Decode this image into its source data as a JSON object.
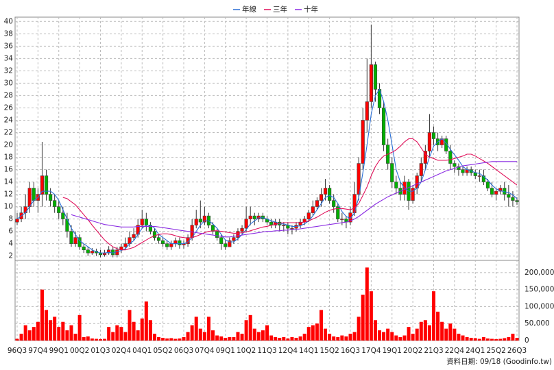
{
  "chart_data": {
    "type": "candlestick",
    "footnote": "資料日期: 09/18 (Goodinfo.tw)",
    "up_color": "#ff0000",
    "down_color": "#00b000",
    "grid": true,
    "legend": "top",
    "categories": [
      "96Q3",
      null,
      null,
      null,
      null,
      "97Q4",
      null,
      null,
      null,
      null,
      "99Q1",
      null,
      null,
      null,
      null,
      "00Q2",
      null,
      null,
      null,
      null,
      "01Q3",
      null,
      null,
      null,
      null,
      "02Q4",
      null,
      null,
      null,
      null,
      "04Q1",
      null,
      null,
      null,
      null,
      "05Q2",
      null,
      null,
      null,
      null,
      "06Q3",
      null,
      null,
      null,
      null,
      "07Q4",
      null,
      null,
      null,
      null,
      "09Q1",
      null,
      null,
      null,
      null,
      "10Q2",
      null,
      null,
      null,
      null,
      "11Q3",
      null,
      null,
      null,
      null,
      "12Q4",
      null,
      null,
      null,
      null,
      "14Q1",
      null,
      null,
      null,
      null,
      "15Q2",
      null,
      null,
      null,
      null,
      "16Q3",
      null,
      null,
      null,
      null,
      "17Q4",
      null,
      null,
      null,
      null,
      "19Q1",
      null,
      null,
      null,
      null,
      "20Q2",
      null,
      null,
      null,
      null,
      "21Q3",
      null,
      null,
      null,
      null,
      "22Q4",
      null,
      null,
      null,
      null,
      "24Q1",
      null,
      null,
      null,
      null,
      "25Q2",
      null,
      null,
      null,
      null,
      "26Q3"
    ],
    "open": [
      7.5,
      8,
      9,
      10,
      13,
      11,
      12,
      15,
      12,
      11,
      10,
      9,
      8,
      6,
      4,
      5,
      3.5,
      3,
      2.5,
      2.8,
      2.5,
      2.2,
      2.5,
      3,
      2.2,
      3,
      3.5,
      4,
      5,
      5.5,
      7,
      8,
      7,
      6,
      5,
      4.5,
      4,
      3.5,
      4,
      4.5,
      3.8,
      4,
      5,
      7,
      8,
      7.5,
      8.5,
      7,
      6,
      5,
      4,
      3.5,
      4.5,
      5,
      6,
      6.5,
      8,
      8.5,
      8,
      8.5,
      8,
      7.5,
      7,
      7.5,
      7,
      7,
      6.5,
      6.5,
      7,
      7.5,
      8,
      9,
      10,
      11,
      12,
      13,
      11,
      10,
      8,
      8,
      7.5,
      9,
      12,
      17,
      24,
      27,
      33,
      29,
      26,
      20,
      17,
      14,
      13,
      12,
      14,
      11,
      13,
      15,
      17,
      19,
      22,
      21,
      20,
      21,
      19,
      17,
      16.5,
      16,
      15.5,
      16,
      15.5,
      15,
      15,
      14,
      13,
      12,
      12.5,
      13,
      12,
      11.5,
      11
    ],
    "high": [
      9,
      10,
      12,
      14,
      14,
      13,
      20.5,
      16,
      13,
      12,
      11,
      10,
      9,
      7,
      6,
      5.5,
      4,
      3.5,
      3.3,
      3.2,
      3,
      3,
      3.6,
      3.5,
      3.5,
      4,
      5,
      6,
      6.5,
      8,
      9.5,
      9,
      7.5,
      6.5,
      5.5,
      5,
      4.5,
      4.5,
      5,
      5,
      4.5,
      5.5,
      8,
      9.5,
      11,
      10,
      9,
      7.5,
      6.5,
      5.5,
      4.5,
      5,
      5.5,
      6.5,
      7,
      10,
      10,
      9,
      9,
      9,
      8.5,
      8,
      8,
      8,
      7.5,
      7.5,
      7,
      7.5,
      8,
      8.5,
      9.5,
      11,
      11.5,
      13,
      14.5,
      13.5,
      12,
      10.5,
      9,
      8.5,
      10,
      14,
      18,
      26,
      34,
      39.5,
      33.5,
      30,
      27,
      21,
      18,
      15,
      14,
      15,
      14.5,
      13.5,
      15.5,
      18,
      20,
      25,
      23,
      22,
      21.5,
      21.5,
      20,
      17.5,
      17,
      16.5,
      16.5,
      16.5,
      16,
      16,
      16,
      14.5,
      14,
      13,
      13.5,
      14,
      13.5,
      12.5,
      11.5
    ],
    "low": [
      7,
      7.5,
      8,
      9,
      10,
      9,
      10,
      11,
      10,
      9,
      8,
      7,
      5,
      3.5,
      3.5,
      3,
      2.5,
      2,
      2.2,
      2,
      1.8,
      1.9,
      2.2,
      1.8,
      1.8,
      2.5,
      3,
      3.5,
      4.5,
      5,
      6.5,
      6,
      5.5,
      4.5,
      4,
      3.5,
      3,
      3,
      3.5,
      3.2,
      3.2,
      3.5,
      4.5,
      6.5,
      6.5,
      7,
      6.5,
      5.5,
      4.5,
      3,
      3,
      3.5,
      4,
      4.5,
      5.5,
      6,
      7,
      7,
      7.5,
      7.5,
      7,
      6.5,
      6.5,
      6,
      6,
      5.5,
      5.5,
      6,
      6.5,
      7,
      7.5,
      8.5,
      9.5,
      10,
      11,
      10.5,
      9,
      7.5,
      7,
      6.5,
      7,
      8.5,
      11,
      16,
      22,
      26,
      27,
      25,
      19,
      16,
      13,
      12,
      11,
      11,
      9.5,
      10.5,
      12,
      14,
      16,
      18,
      20,
      19,
      19.5,
      18.5,
      16,
      15.5,
      15,
      15,
      15,
      15,
      14.5,
      14,
      13.5,
      12.5,
      11.5,
      11,
      12,
      11,
      10,
      10,
      10.3
    ],
    "close": [
      8,
      9,
      10,
      13,
      11,
      12,
      15,
      12,
      11,
      10,
      9,
      8,
      6,
      4,
      5,
      3.5,
      3,
      2.5,
      2.8,
      2.5,
      2.2,
      2.5,
      3,
      2.2,
      3,
      3.5,
      4,
      5,
      5.5,
      7,
      8,
      7,
      6,
      5,
      4.5,
      4,
      3.5,
      4,
      4.5,
      3.8,
      4,
      5,
      7,
      8,
      7.5,
      8.5,
      7,
      6,
      5,
      4,
      3.5,
      4.5,
      5,
      6,
      6.5,
      8,
      8.5,
      8,
      8.5,
      8,
      7.5,
      7,
      7.5,
      7,
      7,
      6.5,
      6.5,
      7,
      7.5,
      8,
      9,
      10,
      11,
      12,
      13,
      11,
      10,
      8,
      8,
      7.5,
      9,
      12,
      17,
      24,
      27,
      33,
      29,
      26,
      20,
      17,
      14,
      13,
      12,
      14,
      11,
      13,
      15,
      17,
      19,
      22,
      21,
      20,
      21,
      19,
      17,
      16.5,
      16,
      15.5,
      16,
      15.5,
      15,
      15,
      14,
      13,
      12,
      12.5,
      13,
      12,
      11.5,
      11,
      10.8
    ],
    "series": [
      {
        "name": "年線",
        "color": "#2a6fd6",
        "values": [
          8,
          8.5,
          9,
          10,
          11,
          11.5,
          12.5,
          12.5,
          12.5,
          12,
          11,
          9.5,
          8,
          6.5,
          5.5,
          4.5,
          4,
          3.5,
          3,
          2.7,
          2.5,
          2.5,
          2.6,
          2.5,
          2.7,
          2.9,
          3.2,
          4,
          4.5,
          5.5,
          6.5,
          7,
          7,
          6.5,
          5.5,
          5,
          4.5,
          4,
          4,
          4,
          4,
          4.3,
          5,
          6,
          7,
          7.7,
          7.7,
          7.2,
          6.5,
          5.5,
          4.6,
          4.3,
          4.3,
          4.8,
          5.5,
          6.3,
          7.2,
          7.7,
          8.2,
          8.2,
          8,
          7.7,
          7.5,
          7.2,
          7.2,
          7,
          6.8,
          6.8,
          6.9,
          7.2,
          7.7,
          8.5,
          9.5,
          10.5,
          11.5,
          11.8,
          11.5,
          10.5,
          9.2,
          8.4,
          8.1,
          9,
          11.5,
          15.5,
          20,
          25,
          28,
          29,
          27,
          24,
          20,
          16,
          14,
          13,
          12.5,
          12.5,
          13,
          14,
          16,
          18,
          19.8,
          20.5,
          21,
          20.3,
          19.3,
          18.4,
          17.5,
          16.5,
          16,
          15.8,
          15.5,
          15.4,
          14.9,
          14.3,
          13.5,
          12.9,
          12.6,
          12.4,
          12.3,
          11.9,
          11.3
        ]
      },
      {
        "name": "三年",
        "color": "#e0105a",
        "values": [
          null,
          null,
          null,
          null,
          null,
          null,
          null,
          null,
          null,
          null,
          null,
          11.5,
          11.3,
          10.8,
          10.3,
          9.5,
          8.7,
          7.9,
          7,
          6.2,
          5.4,
          4.6,
          4,
          3.5,
          3.2,
          3,
          3,
          3.2,
          3.4,
          3.8,
          4.2,
          4.6,
          5,
          5.3,
          5.5,
          5.6,
          5.6,
          5.5,
          5.3,
          5.1,
          5,
          4.9,
          5,
          5.2,
          5.5,
          5.8,
          6,
          6.1,
          6.1,
          6,
          5.9,
          5.8,
          5.7,
          5.7,
          5.8,
          5.9,
          6.1,
          6.3,
          6.5,
          6.7,
          6.8,
          7,
          7.1,
          7.3,
          7.4,
          7.4,
          7.4,
          7.4,
          7.4,
          7.5,
          7.7,
          8,
          8.3,
          8.7,
          9.1,
          9.4,
          9.6,
          9.7,
          9.7,
          9.6,
          9.5,
          9.8,
          10.5,
          11.8,
          13.2,
          15,
          16.5,
          17.5,
          18.2,
          18.5,
          18.8,
          19.2,
          19.8,
          20.5,
          21,
          21,
          20.5,
          19.5,
          18.5,
          18,
          17.8,
          17.5,
          17.5,
          17.5,
          17.6,
          17.8,
          18,
          18.2,
          18.5,
          18.5,
          18.2,
          17.8,
          17.4,
          17,
          16.5,
          16,
          15.5,
          15,
          14.5,
          14,
          13.5
        ]
      },
      {
        "name": "十年",
        "color": "#8a2be2",
        "values": [
          null,
          null,
          null,
          null,
          null,
          null,
          null,
          null,
          null,
          null,
          null,
          null,
          null,
          8.7,
          8.5,
          8.3,
          8.1,
          7.9,
          7.7,
          7.5,
          7.3,
          7.1,
          7,
          6.9,
          6.8,
          6.7,
          6.7,
          6.7,
          6.7,
          6.8,
          6.8,
          6.8,
          6.8,
          6.8,
          6.7,
          6.6,
          6.5,
          6.4,
          6.3,
          6.2,
          6.1,
          6,
          5.9,
          5.8,
          5.7,
          5.6,
          5.5,
          5.4,
          5.3,
          5.2,
          5.1,
          5.1,
          5.2,
          5.3,
          5.4,
          5.5,
          5.6,
          5.7,
          5.8,
          5.9,
          6,
          6,
          6.1,
          6.1,
          6.2,
          6.2,
          6.3,
          6.3,
          6.4,
          6.5,
          6.6,
          6.7,
          6.8,
          6.9,
          7,
          7.1,
          7.2,
          7.3,
          7.4,
          7.5,
          7.7,
          8,
          8.4,
          8.9,
          9.4,
          9.9,
          10.4,
          10.8,
          11.2,
          11.6,
          11.9,
          12.2,
          12.5,
          12.8,
          13.1,
          13.4,
          13.7,
          14,
          14.3,
          14.6,
          14.9,
          15.2,
          15.5,
          15.8,
          16,
          16.2,
          16.4,
          16.6,
          16.7,
          16.8,
          16.9,
          17,
          17.1,
          17.2,
          17.3,
          17.3,
          17.3,
          17.3,
          17.3,
          17.3,
          17.3
        ]
      }
    ],
    "ylim": [
      1.3,
      40.7
    ],
    "yticks": [
      2,
      4,
      6,
      8,
      10,
      12,
      14,
      16,
      18,
      20,
      22,
      24,
      26,
      28,
      30,
      32,
      34,
      36,
      38,
      40
    ],
    "volume": {
      "color": "#ff0000",
      "values": [
        5000,
        20000,
        45000,
        30000,
        40000,
        55000,
        150000,
        90000,
        60000,
        70000,
        40000,
        55000,
        30000,
        45000,
        20000,
        75000,
        10000,
        12000,
        6000,
        5000,
        4000,
        5000,
        40000,
        25000,
        45000,
        40000,
        25000,
        90000,
        55000,
        30000,
        65000,
        115000,
        60000,
        20000,
        10000,
        8000,
        6000,
        7000,
        5000,
        6000,
        10000,
        25000,
        45000,
        70000,
        35000,
        25000,
        70000,
        30000,
        15000,
        12000,
        8000,
        10000,
        10000,
        25000,
        20000,
        60000,
        75000,
        35000,
        25000,
        30000,
        45000,
        15000,
        10000,
        8000,
        10000,
        6000,
        10000,
        8000,
        12000,
        20000,
        40000,
        45000,
        50000,
        90000,
        35000,
        20000,
        12000,
        10000,
        15000,
        12000,
        20000,
        25000,
        70000,
        135000,
        215000,
        145000,
        60000,
        30000,
        25000,
        35000,
        25000,
        15000,
        10000,
        15000,
        40000,
        20000,
        35000,
        55000,
        60000,
        45000,
        145000,
        85000,
        55000,
        35000,
        50000,
        35000,
        20000,
        15000,
        10000,
        8000,
        7000,
        5000,
        10000,
        6000,
        5000,
        4000,
        5000,
        7000,
        10000,
        20000,
        8000
      ],
      "ylim": [
        0,
        236000
      ],
      "yticks": [
        0,
        {
          "value": 50000,
          "label": "50,000"
        },
        {
          "value": 100000,
          "label": "100,000"
        },
        {
          "value": 150000,
          "label": "150,000"
        },
        {
          "value": 200000,
          "label": "200,000"
        }
      ]
    }
  }
}
